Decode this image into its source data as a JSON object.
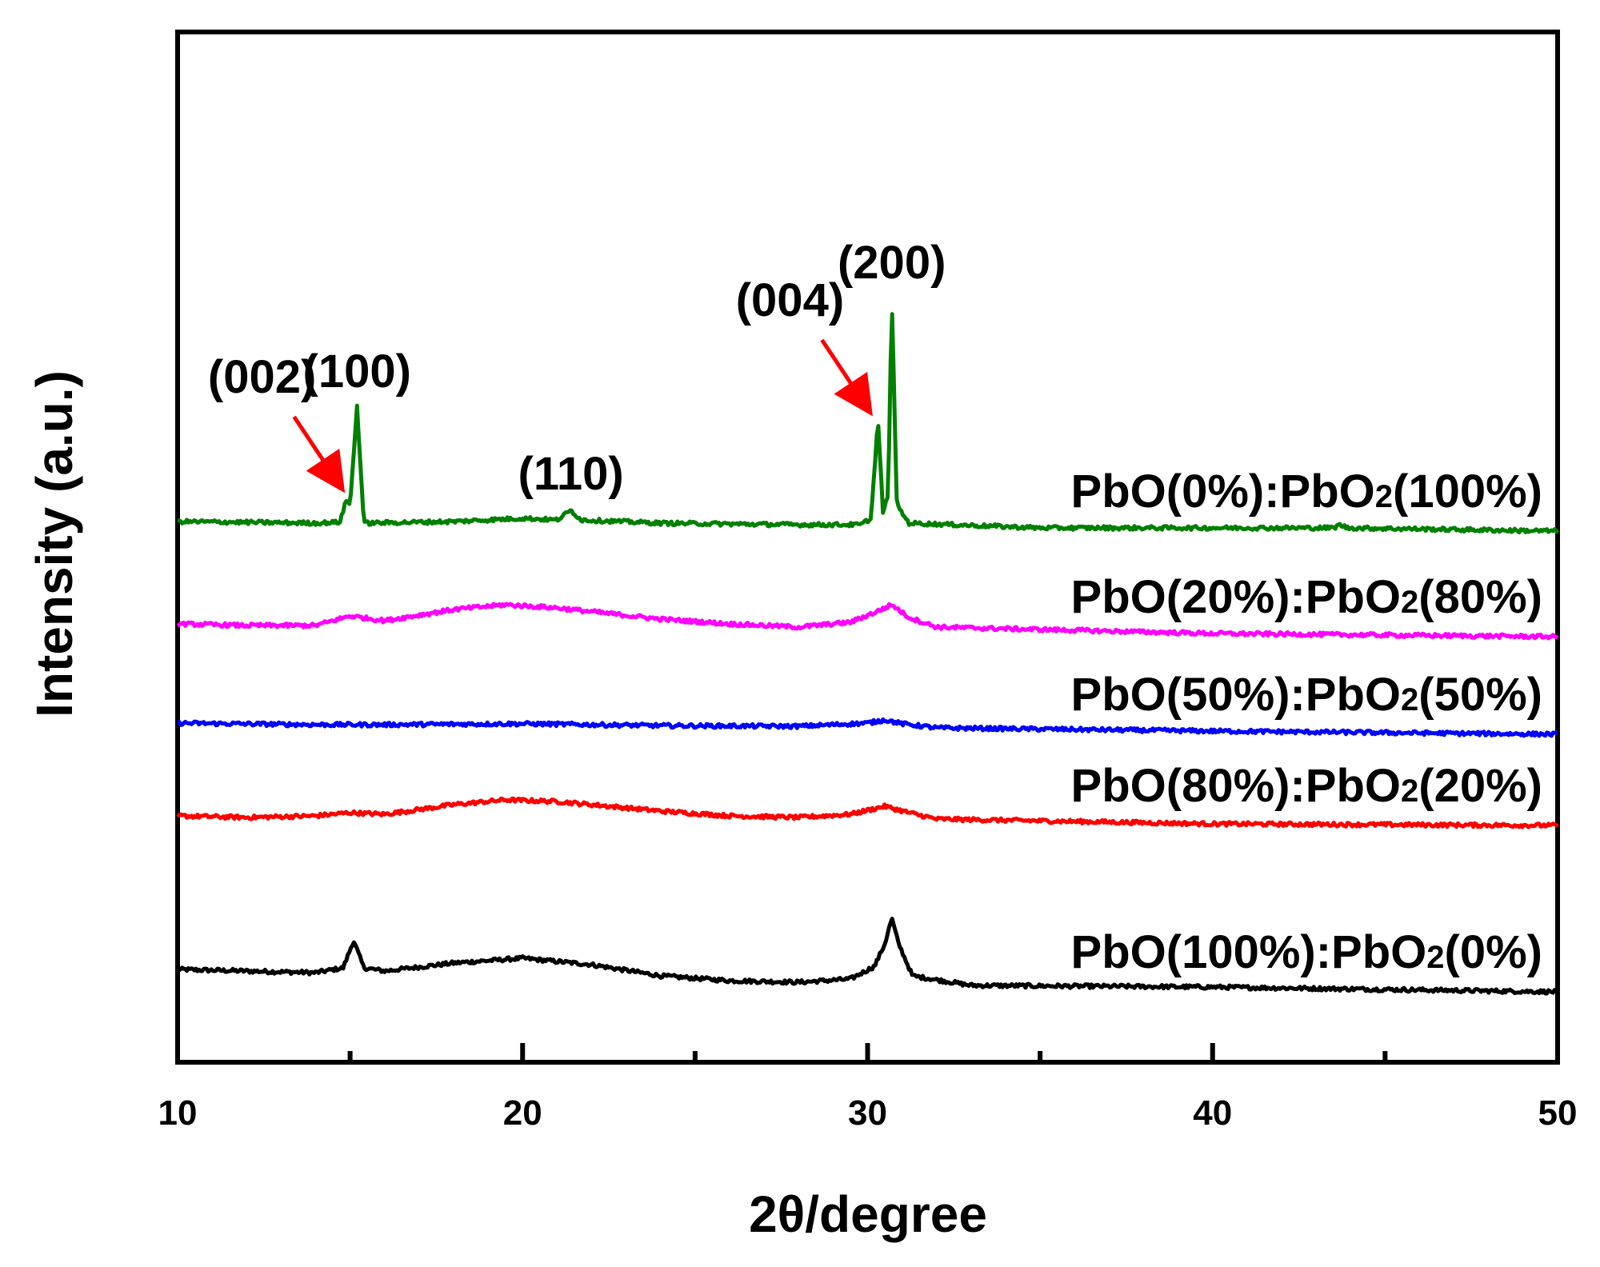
{
  "chart_data": {
    "type": "line",
    "title": "",
    "xlabel": "2θ/degree",
    "ylabel": "Intensity (a.u.)",
    "xlim": [
      10,
      50
    ],
    "xticks": [
      10,
      20,
      30,
      40,
      50
    ],
    "xticks_minor": [
      15,
      25,
      35,
      45
    ],
    "yticks": [],
    "grid": false,
    "legend": "inline labels on right",
    "series": [
      {
        "name": "PbO(100%):PbO2(0%)",
        "label_main": "PbO(100%):PbO",
        "label_sub": "2",
        "label_tail": "(0%)",
        "color": "#000000",
        "points": [
          [
            10,
            0.07
          ],
          [
            12,
            0.065
          ],
          [
            14,
            0.06
          ],
          [
            14.8,
            0.075
          ],
          [
            15.1,
            0.16
          ],
          [
            15.4,
            0.075
          ],
          [
            16,
            0.065
          ],
          [
            18,
            0.09
          ],
          [
            20,
            0.105
          ],
          [
            22,
            0.085
          ],
          [
            24,
            0.05
          ],
          [
            26,
            0.035
          ],
          [
            28,
            0.03
          ],
          [
            29.5,
            0.04
          ],
          [
            30.2,
            0.08
          ],
          [
            30.5,
            0.15
          ],
          [
            30.7,
            0.23
          ],
          [
            30.9,
            0.15
          ],
          [
            31.3,
            0.05
          ],
          [
            33,
            0.02
          ],
          [
            40,
            0.015
          ],
          [
            50,
            0.0
          ]
        ]
      },
      {
        "name": "PbO(80%):PbO2(20%)",
        "label_main": "PbO(80%):PbO",
        "label_sub": "2",
        "label_tail": "(20%)",
        "color": "#ff0000",
        "points": [
          [
            10,
            0.55
          ],
          [
            12,
            0.545
          ],
          [
            14,
            0.55
          ],
          [
            15,
            0.56
          ],
          [
            16,
            0.555
          ],
          [
            18,
            0.585
          ],
          [
            19.5,
            0.6
          ],
          [
            21,
            0.595
          ],
          [
            24,
            0.565
          ],
          [
            26,
            0.55
          ],
          [
            28,
            0.545
          ],
          [
            29.5,
            0.555
          ],
          [
            30.5,
            0.58
          ],
          [
            31.2,
            0.56
          ],
          [
            32,
            0.54
          ],
          [
            40,
            0.525
          ],
          [
            50,
            0.52
          ]
        ]
      },
      {
        "name": "PbO(50%):PbO2(50%)",
        "label_main": "PbO(50%):PbO",
        "label_sub": "2",
        "label_tail": "(50%)",
        "color": "#0000ff",
        "points": [
          [
            10,
            0.84
          ],
          [
            14,
            0.835
          ],
          [
            16,
            0.835
          ],
          [
            20,
            0.838
          ],
          [
            24,
            0.832
          ],
          [
            28,
            0.83
          ],
          [
            30,
            0.84
          ],
          [
            30.5,
            0.85
          ],
          [
            31,
            0.838
          ],
          [
            32,
            0.825
          ],
          [
            40,
            0.815
          ],
          [
            50,
            0.805
          ]
        ]
      },
      {
        "name": "PbO(20%):PbO2(80%)",
        "label_main": "PbO(20%):PbO",
        "label_sub": "2",
        "label_tail": "(80%)",
        "color": "#ff00ff",
        "points": [
          [
            10,
            1.15
          ],
          [
            12,
            1.145
          ],
          [
            14,
            1.145
          ],
          [
            15,
            1.175
          ],
          [
            16,
            1.16
          ],
          [
            18,
            1.195
          ],
          [
            19.5,
            1.21
          ],
          [
            21,
            1.2
          ],
          [
            24,
            1.165
          ],
          [
            26,
            1.15
          ],
          [
            28,
            1.14
          ],
          [
            29.5,
            1.155
          ],
          [
            30.3,
            1.19
          ],
          [
            30.7,
            1.21
          ],
          [
            31.2,
            1.17
          ],
          [
            32,
            1.14
          ],
          [
            40,
            1.12
          ],
          [
            50,
            1.11
          ]
        ]
      },
      {
        "name": "PbO(0%):PbO2(100%)",
        "label_main": "PbO(0%):PbO",
        "label_sub": "2",
        "label_tail": "(100%)",
        "color": "#008000",
        "points": [
          [
            10,
            1.47
          ],
          [
            14,
            1.465
          ],
          [
            14.7,
            1.468
          ],
          [
            14.9,
            1.54
          ],
          [
            15.0,
            1.52
          ],
          [
            15.2,
            1.83
          ],
          [
            15.4,
            1.465
          ],
          [
            18,
            1.47
          ],
          [
            20,
            1.48
          ],
          [
            21,
            1.475
          ],
          [
            21.4,
            1.505
          ],
          [
            21.7,
            1.475
          ],
          [
            24,
            1.465
          ],
          [
            28,
            1.46
          ],
          [
            29.8,
            1.46
          ],
          [
            30.1,
            1.48
          ],
          [
            30.3,
            1.79
          ],
          [
            30.45,
            1.49
          ],
          [
            30.6,
            1.56
          ],
          [
            30.7,
            2.17
          ],
          [
            30.85,
            1.52
          ],
          [
            31.2,
            1.465
          ],
          [
            35,
            1.45
          ],
          [
            43.5,
            1.45
          ],
          [
            43.7,
            1.46
          ],
          [
            43.9,
            1.45
          ],
          [
            50,
            1.44
          ]
        ]
      }
    ],
    "annotations": [
      {
        "text": "(002)",
        "x": 15.0,
        "y": 1.56,
        "arrow": true
      },
      {
        "text": "(100)",
        "x": 15.2,
        "y": 1.84,
        "arrow": false
      },
      {
        "text": "(110)",
        "x": 21.4,
        "y": 1.52,
        "arrow": false
      },
      {
        "text": "(004)",
        "x": 30.3,
        "y": 1.8,
        "arrow": true
      },
      {
        "text": "(200)",
        "x": 30.7,
        "y": 2.18,
        "arrow": false
      }
    ]
  }
}
